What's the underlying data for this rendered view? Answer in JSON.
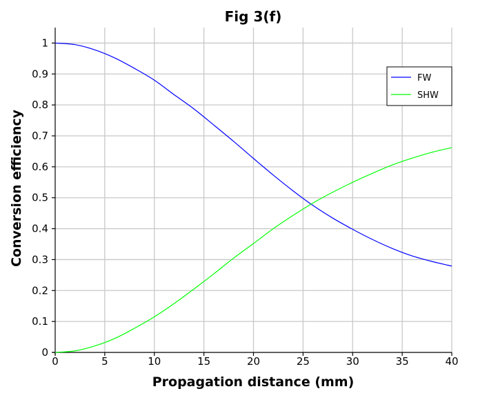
{
  "chart_data": {
    "type": "line",
    "title": "Fig 3(f)",
    "xlabel": "Propagation distance (mm)",
    "ylabel": "Conversion efficiency",
    "xlim": [
      0,
      40
    ],
    "ylim": [
      0,
      1.05
    ],
    "grid": true,
    "legend_position": "top-right",
    "x_ticks": [
      0,
      5,
      10,
      15,
      20,
      25,
      30,
      35,
      40
    ],
    "x_tick_labels": [
      "0",
      "5",
      "10",
      "15",
      "20",
      "25",
      "30",
      "35",
      "40"
    ],
    "y_ticks": [
      0,
      0.1,
      0.2,
      0.3,
      0.4,
      0.5,
      0.6,
      0.7,
      0.8,
      0.9,
      1
    ],
    "y_tick_labels": [
      "0",
      "0.1",
      "0.2",
      "0.3",
      "0.4",
      "0.5",
      "0.6",
      "0.7",
      "0.8",
      "0.9",
      "1"
    ],
    "series": [
      {
        "name": "FW",
        "color": "#0000ff",
        "x": [
          0,
          2,
          4,
          6,
          8,
          10,
          12,
          14,
          16,
          18,
          20,
          22,
          24,
          26,
          28,
          30,
          32,
          34,
          36,
          38,
          40
        ],
        "y": [
          1.0,
          0.995,
          0.978,
          0.952,
          0.918,
          0.88,
          0.833,
          0.787,
          0.735,
          0.682,
          0.627,
          0.573,
          0.522,
          0.475,
          0.434,
          0.398,
          0.365,
          0.336,
          0.312,
          0.294,
          0.279
        ]
      },
      {
        "name": "SHW",
        "color": "#00ff00",
        "x": [
          0,
          2,
          4,
          6,
          8,
          10,
          12,
          14,
          16,
          18,
          20,
          22,
          24,
          26,
          28,
          30,
          32,
          34,
          36,
          38,
          40
        ],
        "y": [
          0.0,
          0.005,
          0.021,
          0.045,
          0.078,
          0.115,
          0.158,
          0.205,
          0.254,
          0.305,
          0.352,
          0.4,
          0.443,
          0.483,
          0.518,
          0.55,
          0.579,
          0.606,
          0.628,
          0.647,
          0.662
        ]
      }
    ]
  }
}
